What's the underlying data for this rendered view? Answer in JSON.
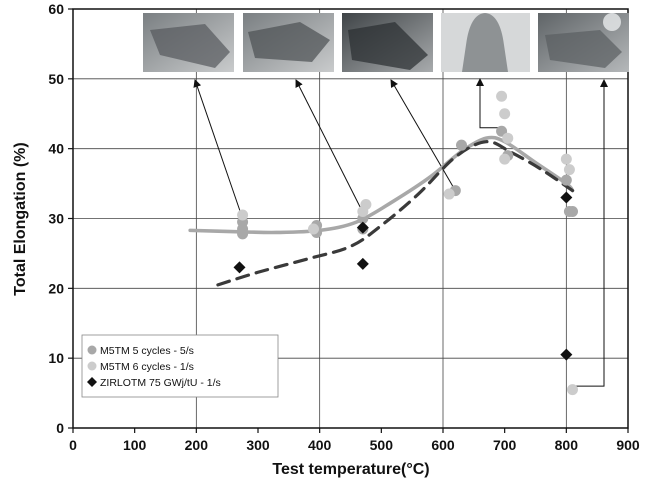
{
  "chart_data": {
    "type": "scatter",
    "xlabel": "Test temperature(°C)",
    "ylabel": "Total Elongation (%)",
    "xlim": [
      0,
      900
    ],
    "ylim": [
      0,
      60
    ],
    "xticks": [
      0,
      100,
      200,
      300,
      400,
      500,
      600,
      700,
      800,
      900
    ],
    "yticks": [
      0,
      10,
      20,
      30,
      40,
      50,
      60
    ],
    "grid": true,
    "legend_position": "bottom-left",
    "series": [
      {
        "name": "M5TM 5 cycles - 5/s",
        "marker": "circle",
        "color": "#a8a8a8",
        "points": [
          [
            275,
            29.5
          ],
          [
            275,
            28.5
          ],
          [
            275,
            27.8
          ],
          [
            395,
            29.0
          ],
          [
            395,
            28.0
          ],
          [
            470,
            30.0
          ],
          [
            470,
            28.5
          ],
          [
            620,
            34.0
          ],
          [
            630,
            40.5
          ],
          [
            695,
            42.5
          ],
          [
            705,
            39.0
          ],
          [
            800,
            35.5
          ],
          [
            805,
            31.0
          ],
          [
            810,
            31.0
          ]
        ]
      },
      {
        "name": "M5TM 6 cycles - 1/s",
        "marker": "circle",
        "color": "#cccccc",
        "points": [
          [
            275,
            30.5
          ],
          [
            390,
            28.5
          ],
          [
            475,
            32.0
          ],
          [
            470,
            31.0
          ],
          [
            610,
            33.5
          ],
          [
            695,
            47.5
          ],
          [
            700,
            45.0
          ],
          [
            700,
            38.5
          ],
          [
            705,
            41.5
          ],
          [
            800,
            38.5
          ],
          [
            805,
            37.0
          ],
          [
            810,
            5.5
          ]
        ]
      },
      {
        "name": "ZIRLOTM 75 GWj/tU - 1/s",
        "marker": "diamond",
        "color": "#111111",
        "points": [
          [
            270,
            23.0
          ],
          [
            470,
            28.7
          ],
          [
            470,
            23.5
          ],
          [
            800,
            33.0
          ],
          [
            800,
            10.5
          ]
        ]
      }
    ],
    "trend_lines": [
      {
        "style": "solid",
        "color": "#a8a8a8",
        "points": [
          [
            190,
            28.3
          ],
          [
            270,
            28.1
          ],
          [
            330,
            28.0
          ],
          [
            400,
            28.3
          ],
          [
            460,
            29.5
          ],
          [
            520,
            32.5
          ],
          [
            580,
            36.0
          ],
          [
            630,
            39.6
          ],
          [
            670,
            41.5
          ],
          [
            700,
            41.0
          ],
          [
            750,
            38.0
          ],
          [
            800,
            35.0
          ],
          [
            810,
            34.0
          ]
        ]
      },
      {
        "style": "dashed",
        "color": "#3a3a3a",
        "points": [
          [
            235,
            20.5
          ],
          [
            300,
            22.3
          ],
          [
            380,
            24.2
          ],
          [
            450,
            26.0
          ],
          [
            500,
            29.0
          ],
          [
            560,
            33.5
          ],
          [
            620,
            38.8
          ],
          [
            670,
            41.0
          ],
          [
            710,
            39.5
          ],
          [
            760,
            37.0
          ],
          [
            810,
            34.0
          ]
        ]
      }
    ],
    "photo_arrows": [
      {
        "photo": 1,
        "target": [
          275,
          30
        ]
      },
      {
        "photo": 2,
        "target": [
          475,
          30
        ]
      },
      {
        "photo": 3,
        "target": [
          620,
          34
        ]
      },
      {
        "photo": 4,
        "target": [
          700,
          43
        ]
      },
      {
        "photo": 5,
        "target": [
          805,
          6
        ]
      }
    ]
  }
}
